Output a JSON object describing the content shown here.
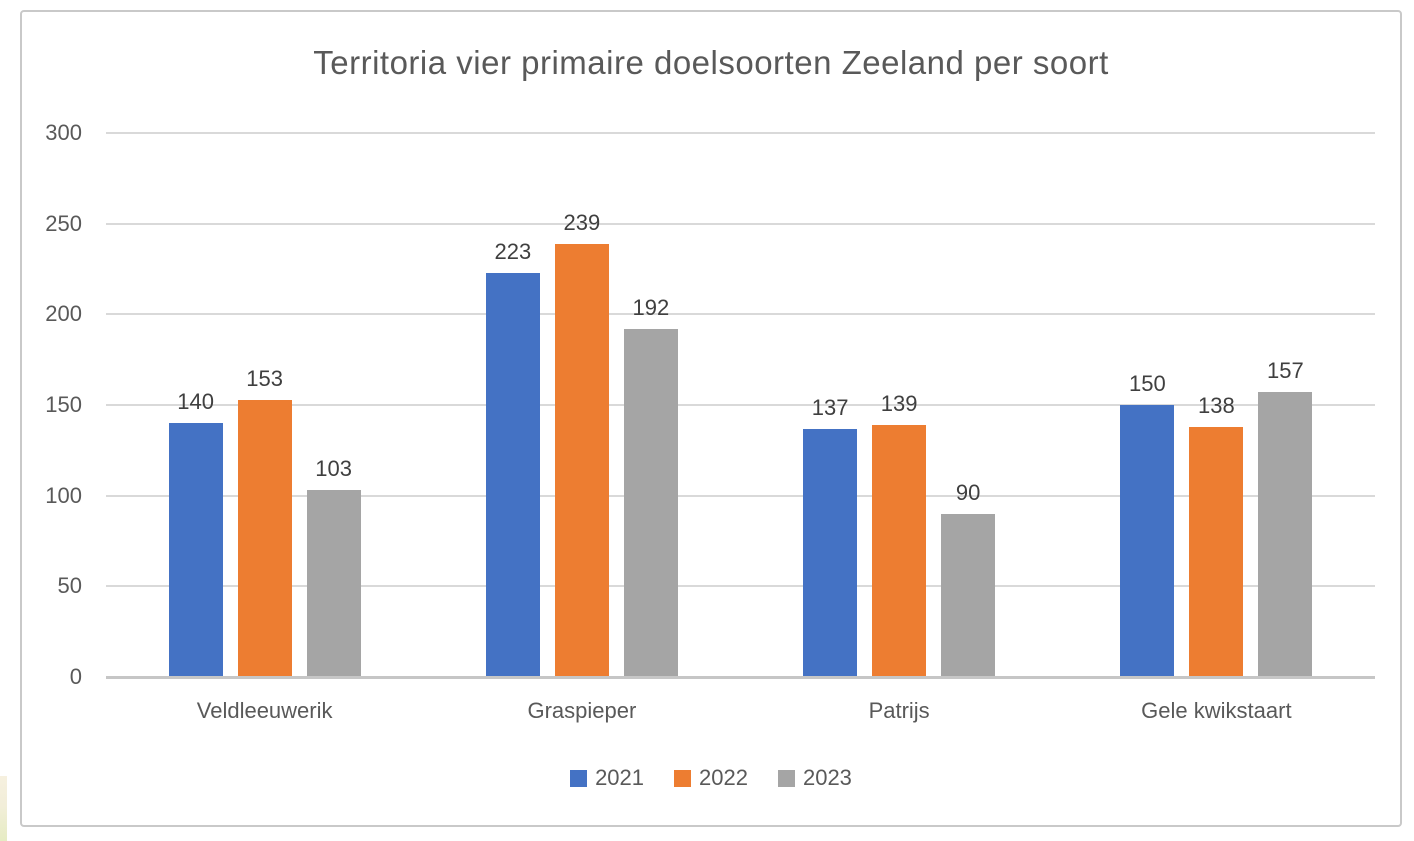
{
  "page": {
    "background": "#ffffff",
    "frame_border_color": "#c9c9c9",
    "accent_strip_colors": [
      "#f6f0df",
      "#e6ecc3"
    ]
  },
  "chart_data": {
    "type": "bar",
    "title": "Territoria vier primaire doelsoorten Zeeland per soort",
    "categories": [
      "Veldleeuwerik",
      "Graspieper",
      "Patrijs",
      "Gele kwikstaart"
    ],
    "series": [
      {
        "name": "2021",
        "color": "#4472C4",
        "values": [
          140,
          223,
          137,
          150
        ]
      },
      {
        "name": "2022",
        "color": "#ED7D31",
        "values": [
          153,
          239,
          139,
          138
        ]
      },
      {
        "name": "2023",
        "color": "#A5A5A5",
        "values": [
          103,
          192,
          90,
          157
        ]
      }
    ],
    "xlabel": "",
    "ylabel": "",
    "ylim": [
      0,
      300
    ],
    "yticks": [
      0,
      50,
      100,
      150,
      200,
      250,
      300
    ],
    "grid": true,
    "data_labels": true,
    "legend_position": "bottom",
    "colors": {
      "gridline": "#d9d9d9",
      "baseline": "#c6c6c6",
      "title_text": "#595959",
      "axis_text": "#595959",
      "data_label_text": "#3f3f3f"
    }
  }
}
